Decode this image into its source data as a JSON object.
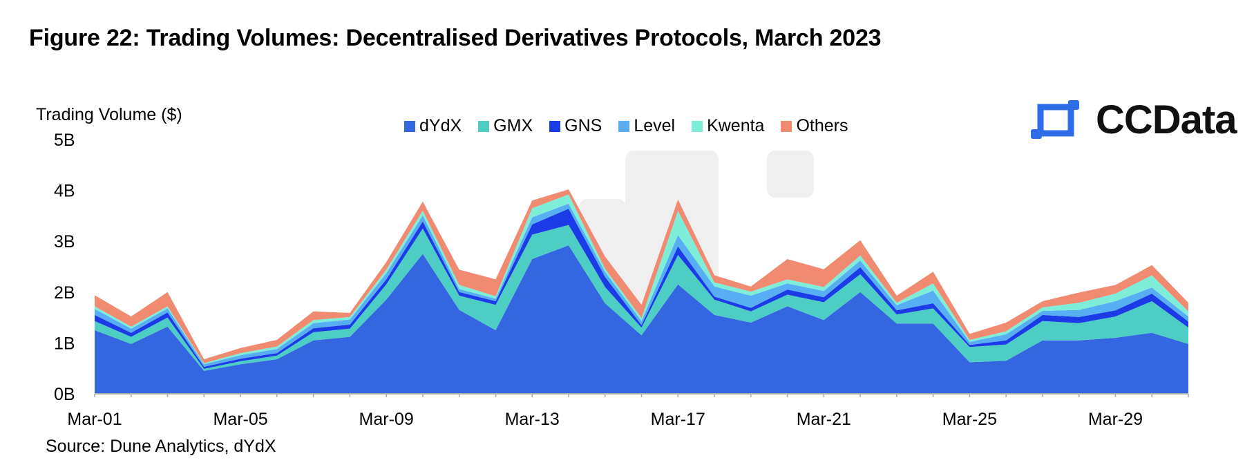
{
  "title": "Figure 22: Trading Volumes: Decentralised Derivatives Protocols, March 2023",
  "source": "Source: Dune Analytics, dYdX",
  "logo": {
    "text": "CCData",
    "icon": "ccdata-logo-icon",
    "color": "#2d6ee8"
  },
  "watermark_icon": "ccdata-watermark-icon",
  "chart_data": {
    "type": "area",
    "stacked": true,
    "ylabel": "Trading Volume ($)",
    "xlabel": "",
    "ylim": [
      0,
      5
    ],
    "y_ticks": [
      "0B",
      "1B",
      "2B",
      "3B",
      "4B",
      "5B"
    ],
    "x": [
      1,
      2,
      3,
      4,
      5,
      6,
      7,
      8,
      9,
      10,
      11,
      12,
      13,
      14,
      15,
      16,
      17,
      18,
      19,
      20,
      21,
      22,
      23,
      24,
      25,
      26,
      27,
      28,
      29,
      30,
      31
    ],
    "x_ticks": [
      {
        "x": 1,
        "label": "Mar-01"
      },
      {
        "x": 5,
        "label": "Mar-05"
      },
      {
        "x": 9,
        "label": "Mar-09"
      },
      {
        "x": 13,
        "label": "Mar-13"
      },
      {
        "x": 17,
        "label": "Mar-17"
      },
      {
        "x": 21,
        "label": "Mar-21"
      },
      {
        "x": 25,
        "label": "Mar-25"
      },
      {
        "x": 29,
        "label": "Mar-29"
      }
    ],
    "grid": false,
    "legend_position": "top-center",
    "series": [
      {
        "name": "dYdX",
        "color": "#3366e0",
        "values": [
          1.25,
          0.98,
          1.32,
          0.45,
          0.58,
          0.68,
          1.05,
          1.12,
          1.85,
          2.75,
          1.65,
          1.25,
          2.65,
          2.92,
          1.78,
          1.15,
          2.15,
          1.55,
          1.4,
          1.72,
          1.45,
          2.0,
          1.38,
          1.38,
          0.62,
          0.65,
          1.05,
          1.05,
          1.1,
          1.2,
          0.98
        ]
      },
      {
        "name": "GMX",
        "color": "#4ecdc4",
        "values": [
          0.18,
          0.14,
          0.18,
          0.04,
          0.06,
          0.07,
          0.16,
          0.16,
          0.3,
          0.5,
          0.28,
          0.5,
          0.48,
          0.4,
          0.32,
          0.15,
          0.58,
          0.3,
          0.22,
          0.23,
          0.35,
          0.35,
          0.18,
          0.3,
          0.3,
          0.32,
          0.38,
          0.34,
          0.42,
          0.62,
          0.32
        ]
      },
      {
        "name": "GNS",
        "color": "#1b3be6",
        "values": [
          0.12,
          0.08,
          0.1,
          0.04,
          0.05,
          0.05,
          0.08,
          0.08,
          0.1,
          0.14,
          0.07,
          0.07,
          0.2,
          0.32,
          0.2,
          0.05,
          0.17,
          0.06,
          0.07,
          0.1,
          0.1,
          0.14,
          0.08,
          0.1,
          0.04,
          0.08,
          0.12,
          0.12,
          0.12,
          0.15,
          0.12
        ]
      },
      {
        "name": "Level",
        "color": "#58aef2",
        "values": [
          0.12,
          0.08,
          0.08,
          0.05,
          0.07,
          0.08,
          0.1,
          0.1,
          0.12,
          0.12,
          0.06,
          0.05,
          0.14,
          0.1,
          0.1,
          0.08,
          0.22,
          0.2,
          0.24,
          0.12,
          0.12,
          0.13,
          0.1,
          0.25,
          0.06,
          0.12,
          0.08,
          0.14,
          0.18,
          0.12,
          0.1
        ]
      },
      {
        "name": "Kwenta",
        "color": "#7eeed8",
        "values": [
          0.05,
          0.04,
          0.04,
          0.02,
          0.04,
          0.05,
          0.06,
          0.05,
          0.07,
          0.09,
          0.08,
          0.05,
          0.18,
          0.18,
          0.06,
          0.06,
          0.48,
          0.08,
          0.08,
          0.08,
          0.08,
          0.1,
          0.05,
          0.14,
          0.04,
          0.06,
          0.07,
          0.14,
          0.15,
          0.24,
          0.1
        ]
      },
      {
        "name": "Others",
        "color": "#f08a70",
        "values": [
          0.22,
          0.2,
          0.28,
          0.08,
          0.1,
          0.13,
          0.17,
          0.08,
          0.15,
          0.18,
          0.3,
          0.33,
          0.15,
          0.1,
          0.24,
          0.26,
          0.22,
          0.14,
          0.1,
          0.4,
          0.35,
          0.3,
          0.14,
          0.23,
          0.12,
          0.17,
          0.12,
          0.2,
          0.17,
          0.2,
          0.17
        ]
      }
    ]
  }
}
